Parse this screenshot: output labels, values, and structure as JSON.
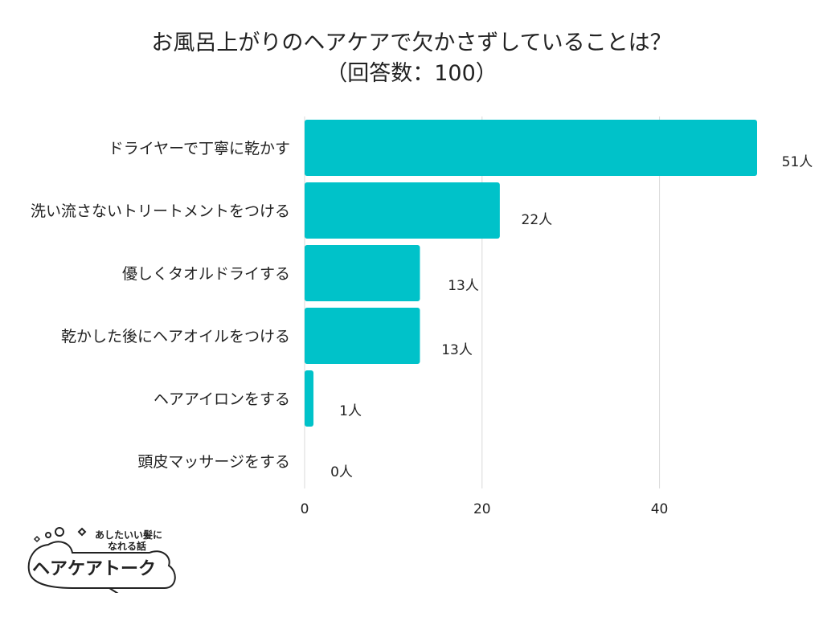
{
  "chart_data": {
    "type": "bar",
    "orientation": "horizontal",
    "title": "お風呂上がりのヘアケアで欠かさずしていることは？",
    "subtitle": "（回答数：100）",
    "categories": [
      "ドライヤーで丁寧に乾かす",
      "洗い流さないトリートメントをつける",
      "優しくタオルドライする",
      "乾かした後にヘアオイルをつける",
      "ヘアアイロンをする",
      "頭皮マッサージをする"
    ],
    "values": [
      51,
      22,
      13,
      13,
      1,
      0
    ],
    "value_labels": [
      "51人",
      "22人",
      "13人",
      "13人",
      "1人",
      "0人"
    ],
    "x_ticks": [
      "0",
      "20",
      "40"
    ],
    "xlim": [
      0,
      51
    ],
    "bar_color": "#00c2c9",
    "grid_color": "#d9d9d9",
    "xlabel": "",
    "ylabel": ""
  },
  "logo": {
    "tagline_line1": "あしたいい髪に",
    "tagline_line2": "なれる話",
    "name": "ヘアケアトーク"
  }
}
